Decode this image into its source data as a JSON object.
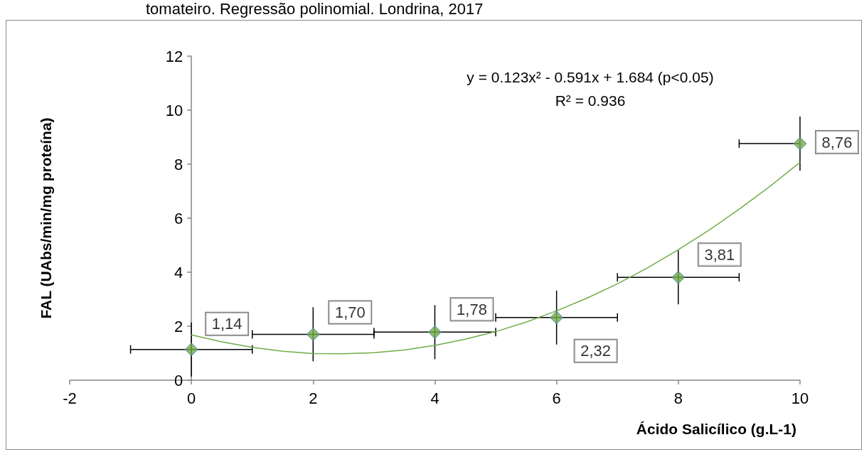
{
  "chart_data": {
    "type": "scatter",
    "title": "tomateiro. Regressão polinomial. Londrina, 2017",
    "xlabel": "Ácido Salicílico (g.L-1)",
    "ylabel": "FAL (UAbs/min/mg proteína)",
    "annotations": [
      "y = 0.123x² - 0.591x + 1.684 (p<0.05)",
      "R² = 0.936"
    ],
    "marker": "diamond",
    "series": [
      {
        "color": "#70ad47",
        "x": [
          0,
          2,
          4,
          6,
          8,
          10
        ],
        "values": [
          1.14,
          1.7,
          1.78,
          2.32,
          3.81,
          8.76
        ],
        "errors": [
          1,
          1,
          1,
          1,
          1,
          1
        ],
        "xerrors": [
          1,
          1,
          1,
          1,
          1,
          [
            9,
            10
          ]
        ],
        "value_labels": [
          "1,14",
          "1,70",
          "1,78",
          "2,32",
          "3,81",
          "8,76"
        ]
      },
      {
        "type": "line",
        "color": "#70ad47",
        "marker": "none",
        "x": [
          0,
          0.5,
          1,
          1.5,
          2,
          2.5,
          3,
          3.5,
          4,
          4.5,
          5,
          5.5,
          6,
          6.5,
          7,
          7.5,
          8,
          8.5,
          9,
          9.5,
          10
        ],
        "values": [
          1.68,
          1.42,
          1.22,
          1.07,
          0.99,
          0.98,
          1.02,
          1.12,
          1.29,
          1.52,
          1.8,
          2.15,
          2.57,
          3.04,
          3.57,
          4.17,
          4.83,
          5.55,
          6.33,
          7.17,
          8.07
        ]
      }
    ],
    "xlim": [
      -2,
      10
    ],
    "ylim": [
      0,
      12
    ],
    "xticks": [
      -2,
      0,
      2,
      4,
      6,
      8,
      10
    ],
    "yticks": [
      0,
      2,
      4,
      6,
      8,
      10,
      12
    ]
  }
}
